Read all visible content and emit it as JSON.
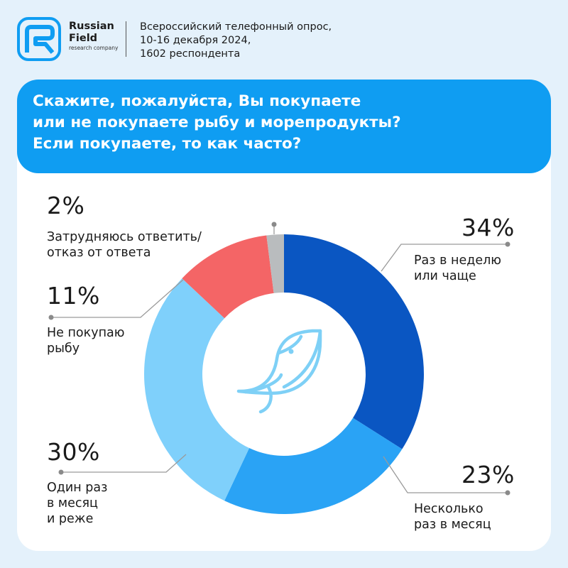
{
  "brand": {
    "name_line1": "Russian",
    "name_line2": "Field",
    "tagline": "research company",
    "colors": {
      "logo": "#0f9df2",
      "banner": "#0f9df2",
      "background": "#e4f1fb"
    }
  },
  "survey": {
    "line1": "Всероссийский телефонный опрос,",
    "line2": "10-16 декабря 2024,",
    "line3": "1602 респондента"
  },
  "question": {
    "line1": "Скажите, пожалуйста, Вы покупаете",
    "line2": "или не покупаете рыбу и морепродукты?",
    "line3": "Если покупаете, то как часто?"
  },
  "center_icon": "fish-icon",
  "chart_data": {
    "type": "pie",
    "donut": true,
    "start": "top",
    "direction": "clockwise",
    "slices": [
      {
        "value": 34,
        "display": "34%",
        "label_lines": [
          "Раз в неделю",
          "или чаще"
        ],
        "color": "#0a56c2"
      },
      {
        "value": 23,
        "display": "23%",
        "label_lines": [
          "Несколько",
          "раз в месяц"
        ],
        "color": "#2aa3f5"
      },
      {
        "value": 30,
        "display": "30%",
        "label_lines": [
          "Один раз",
          "в месяц",
          "и реже"
        ],
        "color": "#7fd0fb"
      },
      {
        "value": 11,
        "display": "11%",
        "label_lines": [
          "Не покупаю",
          "рыбу"
        ],
        "color": "#f46566"
      },
      {
        "value": 2,
        "display": "2%",
        "label_lines": [
          "Затрудняюсь ответить/",
          "отказ от ответа"
        ],
        "color": "#b9bcbe"
      }
    ]
  }
}
